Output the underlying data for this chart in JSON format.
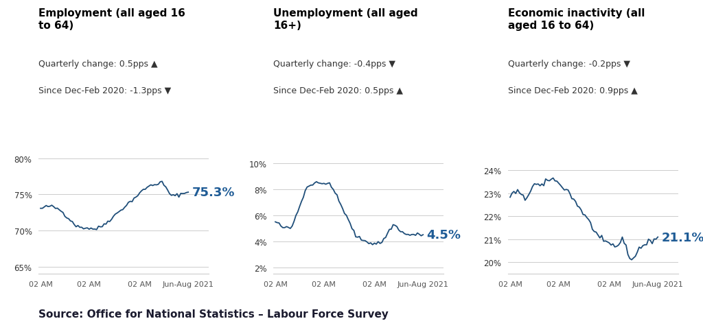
{
  "panel1": {
    "title": "Employment (all aged 16\nto 64)",
    "subtitle1": "Quarterly change: 0.5pps ▲",
    "subtitle2": "Since Dec-Feb 2020: -1.3pps ▼",
    "yticks": [
      65,
      70,
      75,
      80
    ],
    "ylim": [
      64.0,
      81.5
    ],
    "end_label": "75.3%",
    "line_color": "#1f4e79",
    "label_color": "#1f5c96"
  },
  "panel2": {
    "title": "Unemployment (all aged\n16+)",
    "subtitle1": "Quarterly change: -0.4pps ▼",
    "subtitle2": "Since Dec-Feb 2020: 0.5pps ▲",
    "yticks": [
      2,
      4,
      6,
      8,
      10
    ],
    "ylim": [
      1.5,
      11.2
    ],
    "end_label": "4.5%",
    "line_color": "#1f4e79",
    "label_color": "#1f5c96"
  },
  "panel3": {
    "title": "Economic inactivity (all\naged 16 to 64)",
    "subtitle1": "Quarterly change: -0.2pps ▼",
    "subtitle2": "Since Dec-Feb 2020: 0.9pps ▲",
    "yticks": [
      20,
      21,
      22,
      23,
      24
    ],
    "ylim": [
      19.5,
      25.0
    ],
    "end_label": "21.1%",
    "line_color": "#1f4e79",
    "label_color": "#1f5c96"
  },
  "xtick_labels": [
    "02 AM",
    "02 AM",
    "02 AM",
    "Jun-Aug 2021"
  ],
  "source_text": "Source: Office for National Statistics – Labour Force Survey",
  "bg_color": "#ffffff",
  "grid_color": "#cccccc",
  "title_fontsize": 11,
  "subtitle_fontsize": 9,
  "label_fontsize": 13
}
